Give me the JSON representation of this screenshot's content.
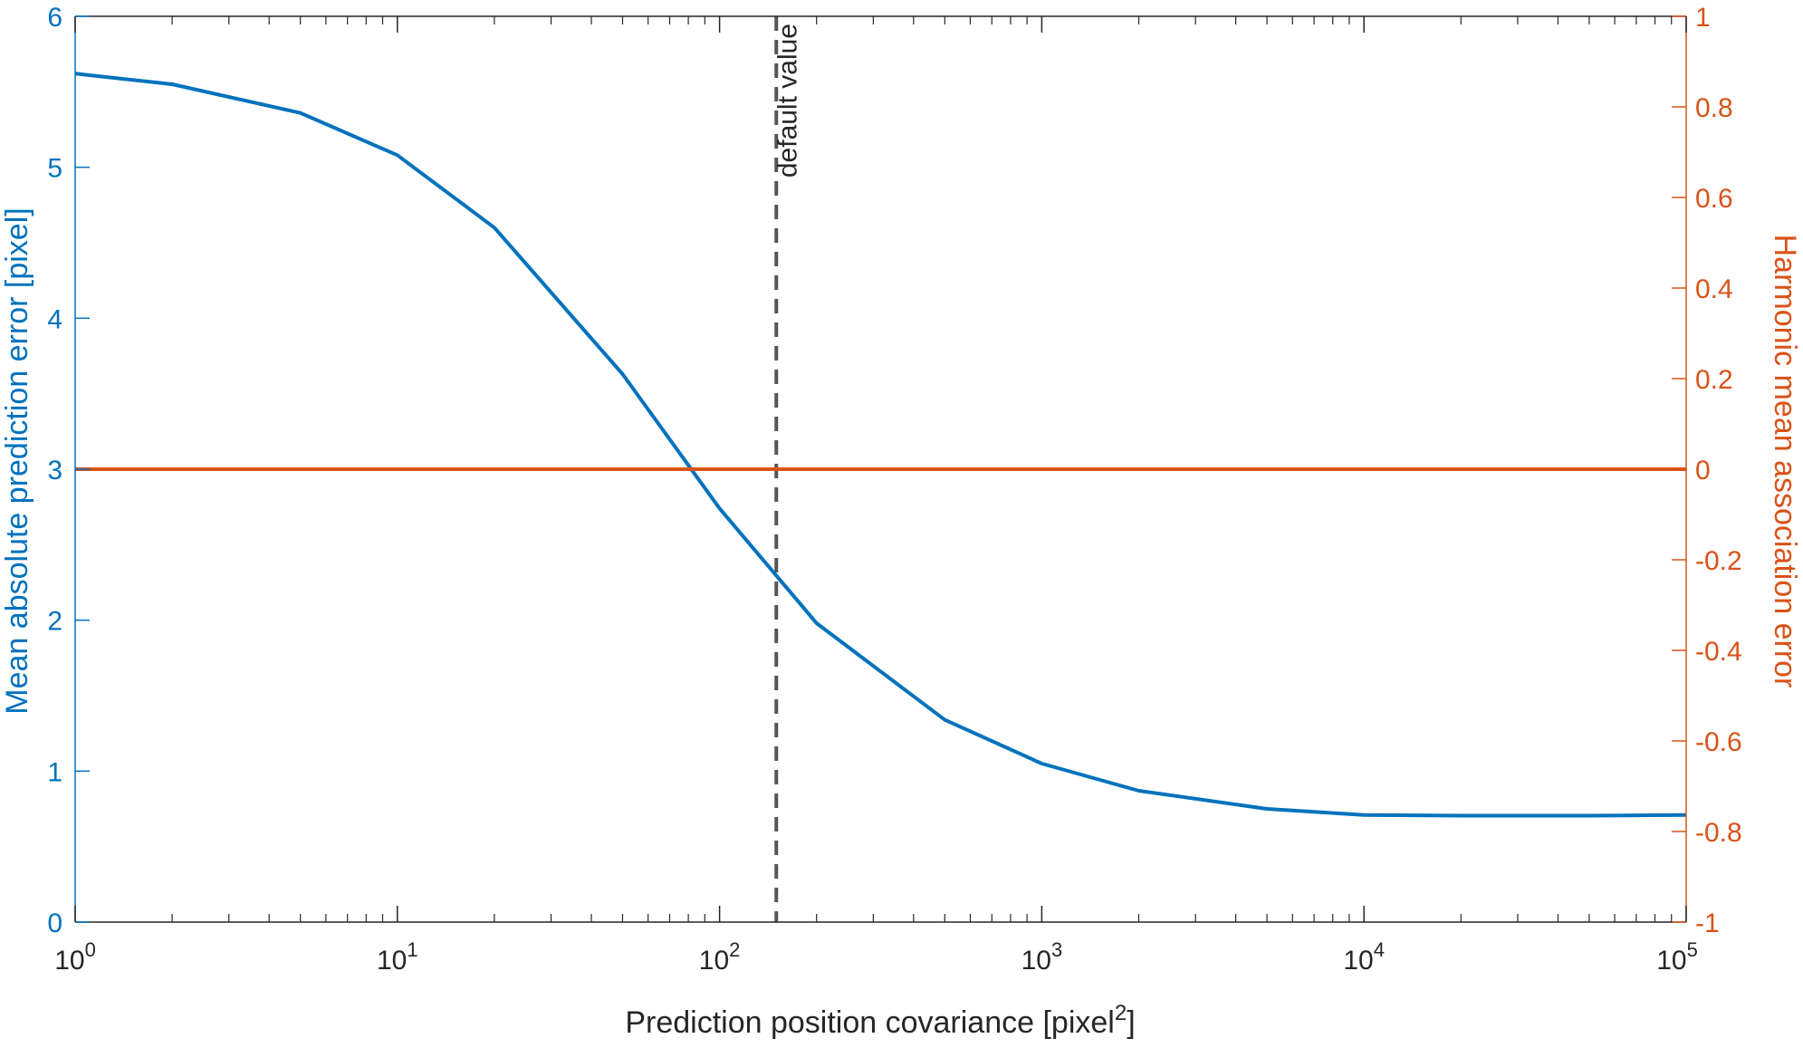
{
  "chart_data": {
    "type": "line",
    "x_scale": "log",
    "xlim": [
      1,
      100000
    ],
    "x_ticks": [
      {
        "value": 1,
        "base": "10",
        "exp": "0"
      },
      {
        "value": 10,
        "base": "10",
        "exp": "1"
      },
      {
        "value": 100,
        "base": "10",
        "exp": "2"
      },
      {
        "value": 1000,
        "base": "10",
        "exp": "3"
      },
      {
        "value": 10000,
        "base": "10",
        "exp": "4"
      },
      {
        "value": 100000,
        "base": "10",
        "exp": "5"
      }
    ],
    "xlabel": {
      "text": "Prediction position covariance [pixel",
      "sup": "2",
      "suffix": "]"
    },
    "ylabel_left": "Mean absolute prediction error [pixel]",
    "ylabel_right": "Harmonic mean association error",
    "ylim_left": [
      0,
      6
    ],
    "ylim_right": [
      -1,
      1
    ],
    "yticks_left": [
      "0",
      "1",
      "2",
      "3",
      "4",
      "5",
      "6"
    ],
    "yticks_right": [
      "-1",
      "-0.8",
      "-0.6",
      "-0.4",
      "-0.2",
      "0",
      "0.2",
      "0.4",
      "0.6",
      "0.8",
      "1"
    ],
    "grid": false,
    "series": [
      {
        "axis": "left",
        "color": "#0072bd",
        "x": [
          1,
          2,
          5,
          10,
          20,
          50,
          100,
          200,
          500,
          1000,
          2000,
          5000,
          10000,
          20000,
          50000,
          100000
        ],
        "y": [
          5.62,
          5.55,
          5.36,
          5.08,
          4.6,
          3.63,
          2.74,
          1.98,
          1.34,
          1.05,
          0.87,
          0.75,
          0.71,
          0.705,
          0.705,
          0.71
        ]
      },
      {
        "axis": "right",
        "color": "#d95319",
        "x": [
          1,
          100000
        ],
        "y": [
          0,
          0
        ]
      }
    ],
    "annotations": [
      {
        "type": "vline",
        "x": 150,
        "style": "dashed",
        "color": "#555555",
        "label": "default value"
      }
    ],
    "colors": {
      "left_axis": "#0072bd",
      "right_axis": "#d95319",
      "x_axis": "#262626",
      "vline": "#555555"
    }
  }
}
